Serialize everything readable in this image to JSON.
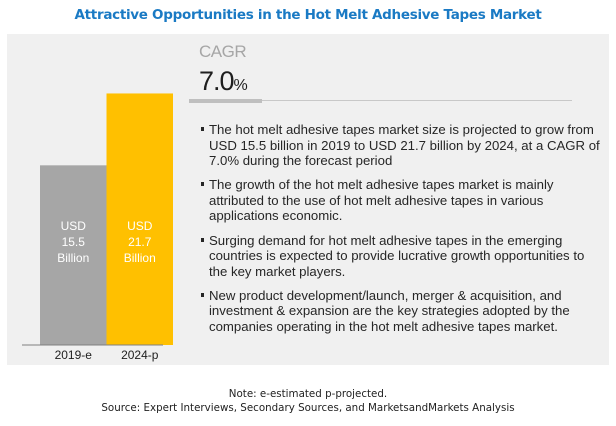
{
  "title": "Attractive Opportunities in the Hot Melt Adhesive Tapes Market",
  "cagr": {
    "label": "CAGR",
    "value": "7.0",
    "unit": "%"
  },
  "bullets": [
    "The hot melt adhesive tapes market size is projected to grow from USD 15.5 billion in 2019 to USD 21.7 billion by 2024, at a CAGR of 7.0% during the forecast period",
    "The growth of the hot melt adhesive tapes market is mainly attributed to the use of hot melt adhesive tapes in various applications economic.",
    "Surging demand for hot melt adhesive tapes in the emerging countries is expected to provide lucrative growth opportunities to the key market players.",
    "New product development/launch, merger & acquisition, and investment & expansion are the key strategies adopted by the companies operating in the hot melt adhesive tapes market."
  ],
  "footer": {
    "note": "Note: e-estimated p-projected.",
    "source": "Source: Expert Interviews, Secondary Sources, and MarketsandMarkets Analysis"
  },
  "colors": {
    "title": "#1a7ac4",
    "bar_2019": "#a6a6a6",
    "bar_2024": "#ffc000",
    "panel": "#f0f0f0"
  },
  "chart_data": {
    "type": "bar",
    "title": "Attractive Opportunities in the Hot Melt Adhesive Tapes Market",
    "categories": [
      "2019-e",
      "2024-p"
    ],
    "values": [
      15.5,
      21.7
    ],
    "unit": "USD Billion",
    "data_labels": [
      [
        "USD",
        "15.5",
        "Billion"
      ],
      [
        "USD",
        "21.7",
        "Billion"
      ]
    ],
    "bar_colors": [
      "#a6a6a6",
      "#ffc000"
    ],
    "xlabel": "",
    "ylabel": "",
    "ylim": [
      0,
      24.5
    ],
    "grid": false,
    "legend": "none"
  }
}
